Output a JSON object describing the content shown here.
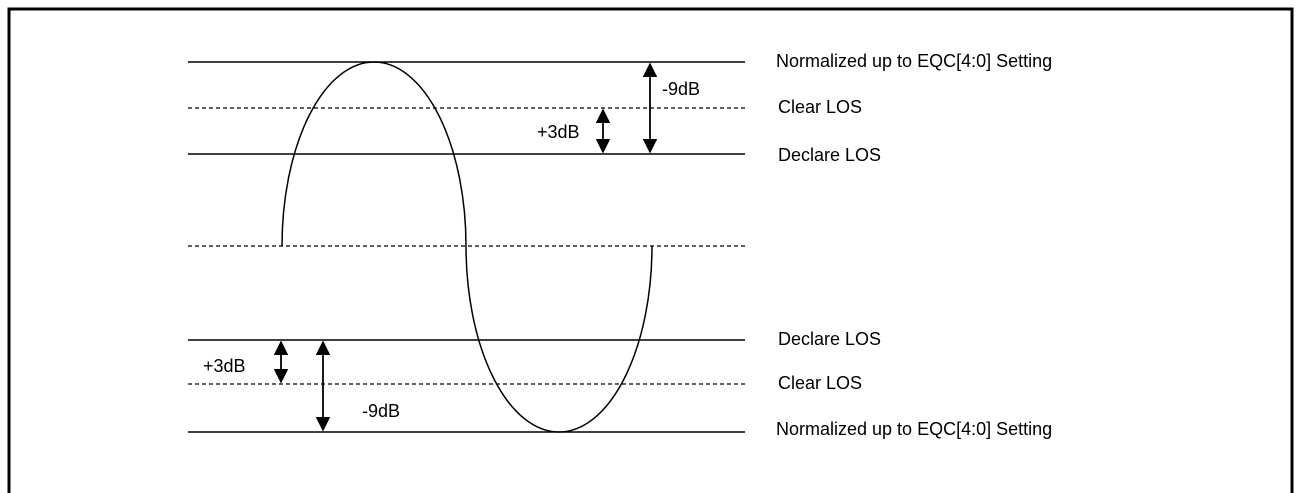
{
  "upper_levels": [
    "Normalized up to EQC[4:0] Setting",
    "Clear LOS",
    "Declare LOS"
  ],
  "lower_levels": [
    "Declare LOS",
    "Clear LOS",
    "Normalized up to EQC[4:0] Setting"
  ],
  "upper_annotations": [
    "-9dB",
    "+3dB"
  ],
  "lower_annotations": [
    "+3dB",
    "-9dB"
  ]
}
